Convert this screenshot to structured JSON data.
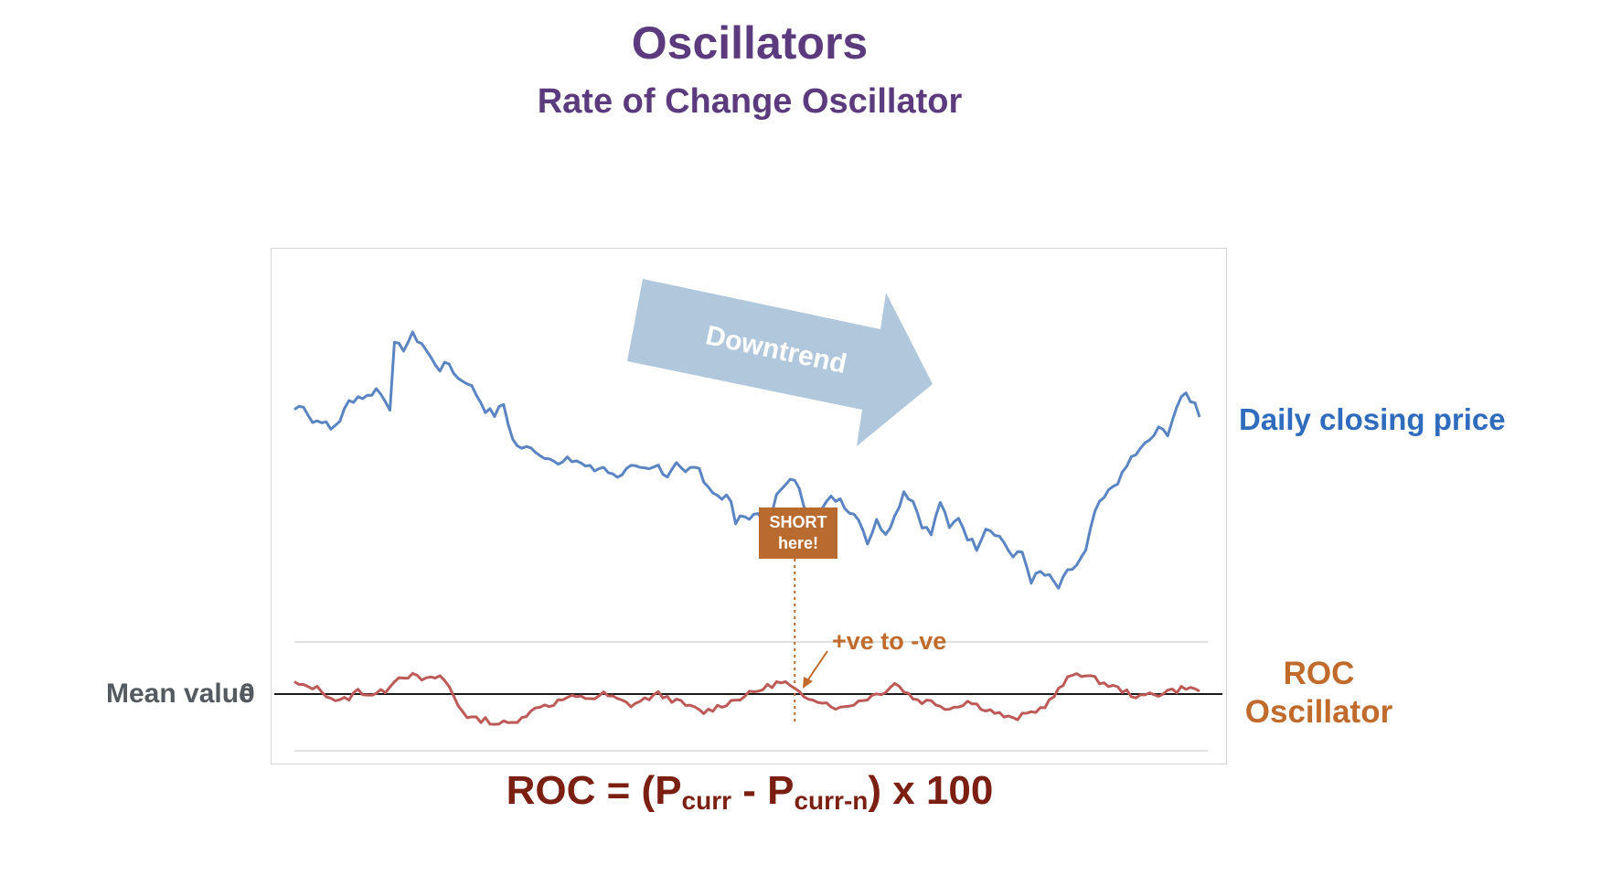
{
  "title": "Oscillators",
  "subtitle": "Rate of Change Oscillator",
  "labels": {
    "price_series": "Daily closing price",
    "roc_series_line1": "ROC",
    "roc_series_line2": "Oscillator",
    "mean_value": "Mean value",
    "zero_tick": "0",
    "downtrend": "Downtrend",
    "short_line1": "SHORT",
    "short_line2": "here!",
    "crossover": "+ve to -ve"
  },
  "formula": {
    "prefix": "ROC = (P",
    "sub1": "curr",
    "mid": " - P",
    "sub2": "curr-n",
    "suffix": ") x 100"
  },
  "colors": {
    "price": "#5a85c2",
    "roc": "#bd5a58",
    "arrow": "#a9c1d8",
    "annotation": "#b86a2f",
    "title": "#5b3a7e"
  },
  "chart_data": {
    "type": "line",
    "x": {
      "points": 200
    },
    "mean_value": 0,
    "signal_index": 110,
    "series": [
      {
        "name": "Daily closing price",
        "anchors": [
          [
            0,
            70
          ],
          [
            2,
            72
          ],
          [
            4,
            65
          ],
          [
            6,
            66
          ],
          [
            8,
            62
          ],
          [
            10,
            66
          ],
          [
            12,
            73
          ],
          [
            14,
            75
          ],
          [
            16,
            75
          ],
          [
            18,
            78
          ],
          [
            20,
            74
          ],
          [
            21,
            71
          ],
          [
            22,
            95
          ],
          [
            24,
            94
          ],
          [
            26,
            99
          ],
          [
            28,
            96
          ],
          [
            30,
            90
          ],
          [
            32,
            86
          ],
          [
            34,
            88
          ],
          [
            36,
            82
          ],
          [
            38,
            81
          ],
          [
            40,
            76
          ],
          [
            42,
            70
          ],
          [
            44,
            68
          ],
          [
            46,
            72
          ],
          [
            48,
            58
          ],
          [
            50,
            54
          ],
          [
            52,
            56
          ],
          [
            54,
            52
          ],
          [
            56,
            52
          ],
          [
            58,
            48
          ],
          [
            60,
            50
          ],
          [
            62,
            50
          ],
          [
            64,
            48
          ],
          [
            66,
            46
          ],
          [
            68,
            48
          ],
          [
            70,
            44
          ],
          [
            72,
            45
          ],
          [
            74,
            47
          ],
          [
            76,
            46
          ],
          [
            78,
            46
          ],
          [
            80,
            48
          ],
          [
            82,
            44
          ],
          [
            84,
            50
          ],
          [
            86,
            45
          ],
          [
            88,
            48
          ],
          [
            90,
            43
          ],
          [
            92,
            37
          ],
          [
            94,
            36
          ],
          [
            96,
            34
          ],
          [
            97,
            24
          ],
          [
            98,
            28
          ],
          [
            100,
            28
          ],
          [
            102,
            28
          ],
          [
            104,
            25
          ],
          [
            106,
            36
          ],
          [
            108,
            40
          ],
          [
            110,
            43
          ],
          [
            112,
            33
          ],
          [
            114,
            26
          ],
          [
            116,
            31
          ],
          [
            118,
            35
          ],
          [
            120,
            35
          ],
          [
            122,
            30
          ],
          [
            124,
            28
          ],
          [
            126,
            18
          ],
          [
            128,
            26
          ],
          [
            130,
            22
          ],
          [
            132,
            28
          ],
          [
            134,
            38
          ],
          [
            136,
            34
          ],
          [
            138,
            25
          ],
          [
            140,
            21
          ],
          [
            142,
            34
          ],
          [
            144,
            23
          ],
          [
            146,
            28
          ],
          [
            148,
            20
          ],
          [
            150,
            16
          ],
          [
            152,
            24
          ],
          [
            154,
            22
          ],
          [
            156,
            18
          ],
          [
            158,
            12
          ],
          [
            160,
            14
          ],
          [
            162,
            3
          ],
          [
            164,
            6
          ],
          [
            166,
            4
          ],
          [
            168,
            0
          ],
          [
            170,
            6
          ],
          [
            172,
            9
          ],
          [
            174,
            14
          ],
          [
            176,
            30
          ],
          [
            178,
            35
          ],
          [
            180,
            40
          ],
          [
            182,
            44
          ],
          [
            184,
            51
          ],
          [
            186,
            54
          ],
          [
            188,
            58
          ],
          [
            190,
            62
          ],
          [
            192,
            61
          ],
          [
            194,
            71
          ],
          [
            196,
            76
          ],
          [
            198,
            72
          ],
          [
            199,
            68
          ]
        ]
      },
      {
        "name": "ROC Oscillator",
        "anchors": [
          [
            0,
            3
          ],
          [
            2,
            2
          ],
          [
            4,
            2
          ],
          [
            6,
            1
          ],
          [
            8,
            -1
          ],
          [
            10,
            -2
          ],
          [
            12,
            -1
          ],
          [
            14,
            1
          ],
          [
            16,
            0
          ],
          [
            18,
            0
          ],
          [
            20,
            1
          ],
          [
            22,
            4
          ],
          [
            24,
            5
          ],
          [
            26,
            5
          ],
          [
            28,
            4
          ],
          [
            30,
            4
          ],
          [
            32,
            5
          ],
          [
            34,
            2
          ],
          [
            36,
            -3
          ],
          [
            38,
            -6
          ],
          [
            40,
            -7
          ],
          [
            42,
            -7
          ],
          [
            44,
            -8
          ],
          [
            46,
            -8
          ],
          [
            48,
            -8
          ],
          [
            50,
            -6
          ],
          [
            52,
            -5
          ],
          [
            54,
            -3
          ],
          [
            56,
            -3
          ],
          [
            58,
            -2
          ],
          [
            60,
            -1
          ],
          [
            62,
            -1
          ],
          [
            64,
            -1
          ],
          [
            66,
            -1
          ],
          [
            68,
            0
          ],
          [
            70,
            -1
          ],
          [
            72,
            -2
          ],
          [
            74,
            -3
          ],
          [
            76,
            -2
          ],
          [
            78,
            -1
          ],
          [
            80,
            0
          ],
          [
            82,
            -1
          ],
          [
            84,
            -2
          ],
          [
            86,
            -3
          ],
          [
            88,
            -4
          ],
          [
            90,
            -5
          ],
          [
            92,
            -4
          ],
          [
            94,
            -3
          ],
          [
            96,
            -2
          ],
          [
            98,
            -1
          ],
          [
            100,
            0
          ],
          [
            102,
            1
          ],
          [
            104,
            2
          ],
          [
            106,
            3
          ],
          [
            108,
            3
          ],
          [
            110,
            1
          ],
          [
            112,
            -1
          ],
          [
            114,
            -1
          ],
          [
            116,
            -2
          ],
          [
            118,
            -3
          ],
          [
            120,
            -4
          ],
          [
            122,
            -3
          ],
          [
            124,
            -2
          ],
          [
            126,
            -1
          ],
          [
            128,
            0
          ],
          [
            130,
            1
          ],
          [
            132,
            3
          ],
          [
            134,
            1
          ],
          [
            136,
            -1
          ],
          [
            138,
            -2
          ],
          [
            140,
            -2
          ],
          [
            142,
            -3
          ],
          [
            144,
            -4
          ],
          [
            146,
            -3
          ],
          [
            148,
            -2
          ],
          [
            150,
            -3
          ],
          [
            152,
            -4
          ],
          [
            154,
            -5
          ],
          [
            156,
            -6
          ],
          [
            158,
            -7
          ],
          [
            160,
            -6
          ],
          [
            162,
            -5
          ],
          [
            164,
            -4
          ],
          [
            166,
            -2
          ],
          [
            168,
            1
          ],
          [
            170,
            4
          ],
          [
            172,
            6
          ],
          [
            174,
            5
          ],
          [
            176,
            4
          ],
          [
            178,
            3
          ],
          [
            180,
            2
          ],
          [
            182,
            1
          ],
          [
            184,
            0
          ],
          [
            186,
            -1
          ],
          [
            188,
            0
          ],
          [
            190,
            0
          ],
          [
            192,
            1
          ],
          [
            194,
            1
          ],
          [
            196,
            2
          ],
          [
            198,
            1
          ],
          [
            199,
            1
          ]
        ]
      }
    ]
  }
}
